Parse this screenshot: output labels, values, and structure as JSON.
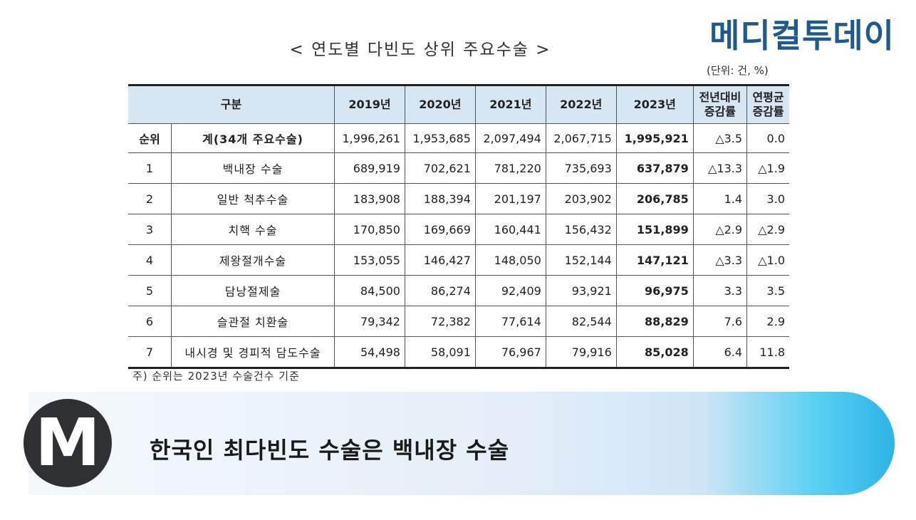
{
  "brand": "메디컬투데이",
  "title": "< 연도별 다빈도 상위 주요수술 >",
  "unit": "(단위: 건, %)",
  "table": {
    "headers": [
      "구분",
      "2019년",
      "2020년",
      "2021년",
      "2022년",
      "2023년",
      "전년대비\n증감률",
      "연평균\n증감률"
    ],
    "total": {
      "rank": "순위",
      "name": "계(34개 주요수술)",
      "values": [
        "1,996,261",
        "1,953,685",
        "2,097,494",
        "2,067,715",
        "1,995,921",
        "△3.5",
        "0.0"
      ]
    },
    "rows": [
      {
        "rank": "1",
        "name": "백내장 수술",
        "values": [
          "689,919",
          "702,621",
          "781,220",
          "735,693",
          "637,879",
          "△13.3",
          "△1.9"
        ]
      },
      {
        "rank": "2",
        "name": "일반 척추수술",
        "values": [
          "183,908",
          "188,394",
          "201,197",
          "203,902",
          "206,785",
          "1.4",
          "3.0"
        ]
      },
      {
        "rank": "3",
        "name": "치핵 수술",
        "values": [
          "170,850",
          "169,669",
          "160,441",
          "156,432",
          "151,899",
          "△2.9",
          "△2.9"
        ]
      },
      {
        "rank": "4",
        "name": "제왕절개수술",
        "values": [
          "153,055",
          "146,427",
          "148,050",
          "152,144",
          "147,121",
          "△3.3",
          "△1.0"
        ]
      },
      {
        "rank": "5",
        "name": "담낭절제술",
        "values": [
          "84,500",
          "86,274",
          "92,409",
          "93,921",
          "96,975",
          "3.3",
          "3.5"
        ]
      },
      {
        "rank": "6",
        "name": "슬관절 치환술",
        "values": [
          "79,342",
          "72,382",
          "77,614",
          "82,544",
          "88,829",
          "7.6",
          "2.9"
        ]
      },
      {
        "rank": "7",
        "name": "내시경 및 경피적 담도수술",
        "values": [
          "54,498",
          "58,091",
          "76,967",
          "79,916",
          "85,028",
          "6.4",
          "11.8"
        ]
      }
    ]
  },
  "note": "주) 순위는 2023년 수술건수 기준",
  "banner": {
    "logo_letter": "M",
    "headline": "한국인 최다빈도 수술은 백내장 수술"
  }
}
